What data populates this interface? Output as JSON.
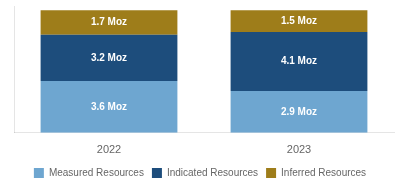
{
  "chart_data": {
    "type": "bar",
    "stacked": true,
    "categories": [
      "2022",
      "2023"
    ],
    "series": [
      {
        "name": "Measured Resources",
        "color": "#6ea6d0",
        "values": [
          3.6,
          2.9
        ],
        "value_labels": [
          "3.6 Moz",
          "2.9 Moz"
        ]
      },
      {
        "name": "Indicated Resources",
        "color": "#1d4d7c",
        "values": [
          3.2,
          4.1
        ],
        "value_labels": [
          "3.2 Moz",
          "4.1 Moz"
        ]
      },
      {
        "name": "Inferred Resources",
        "color": "#9e7d1a",
        "values": [
          1.7,
          1.5
        ],
        "value_labels": [
          "1.7 Moz",
          "1.5 Moz"
        ]
      }
    ],
    "ylim": [
      0,
      8.8
    ],
    "yticks": [],
    "tick_labels": "x",
    "grid": false,
    "legend": "bottom",
    "data_labels": true
  }
}
